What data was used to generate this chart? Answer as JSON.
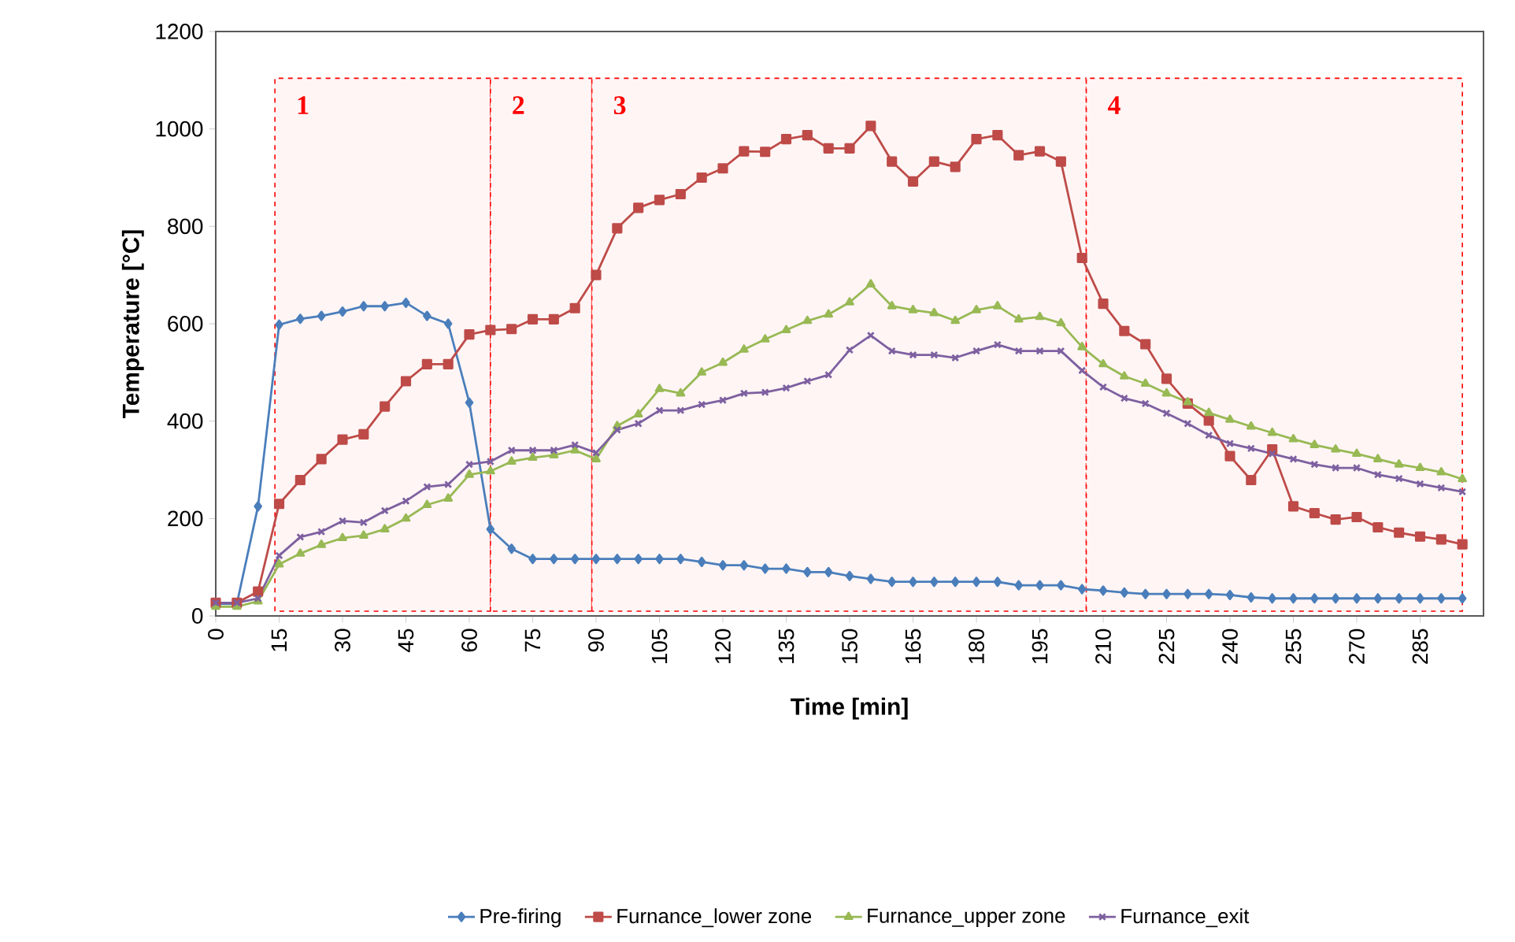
{
  "chart_data": {
    "type": "line",
    "xlabel": "Time [min]",
    "ylabel": "Temperature [°C]",
    "x": [
      0,
      5,
      10,
      15,
      20,
      25,
      30,
      35,
      40,
      45,
      50,
      55,
      60,
      65,
      70,
      75,
      80,
      85,
      90,
      95,
      100,
      105,
      110,
      115,
      120,
      125,
      130,
      135,
      140,
      145,
      150,
      155,
      160,
      165,
      170,
      175,
      180,
      185,
      190,
      195,
      200,
      205,
      210,
      215,
      220,
      225,
      230,
      235,
      240,
      245,
      250,
      255,
      260,
      265,
      270,
      275,
      280,
      285,
      290,
      295
    ],
    "xlim": [
      0,
      300
    ],
    "xticks": [
      0,
      15,
      30,
      45,
      60,
      75,
      90,
      105,
      120,
      135,
      150,
      165,
      180,
      195,
      210,
      225,
      240,
      255,
      270,
      285
    ],
    "ylim": [
      0,
      1200
    ],
    "yticks": [
      0,
      200,
      400,
      600,
      800,
      1000,
      1200
    ],
    "series": [
      {
        "name": "Pre-firing",
        "color": "#4a7ebb",
        "marker": "diamond",
        "values": [
          25,
          25,
          225,
          598,
          610,
          616,
          625,
          636,
          636,
          643,
          616,
          600,
          438,
          178,
          138,
          117,
          117,
          117,
          117,
          117,
          117,
          117,
          117,
          111,
          104,
          104,
          97,
          97,
          90,
          90,
          82,
          76,
          70,
          70,
          70,
          70,
          70,
          70,
          63,
          63,
          63,
          55,
          52,
          48,
          45,
          45,
          45,
          45,
          43,
          38,
          36,
          36,
          36,
          36,
          36,
          36,
          36,
          36,
          36,
          36
        ]
      },
      {
        "name": "Furnance_lower zone",
        "color": "#be4b48",
        "marker": "square",
        "values": [
          27,
          27,
          50,
          230,
          279,
          322,
          362,
          373,
          430,
          482,
          517,
          517,
          578,
          587,
          589,
          609,
          609,
          632,
          700,
          796,
          838,
          854,
          866,
          900,
          919,
          954,
          953,
          979,
          987,
          960,
          960,
          1006,
          933,
          892,
          933,
          922,
          979,
          987,
          946,
          954,
          933,
          735,
          641,
          585,
          558,
          487,
          436,
          401,
          328,
          279,
          342,
          225,
          211,
          198,
          203,
          182,
          171,
          163,
          157,
          147
        ]
      },
      {
        "name": "Furnance_upper zone",
        "color": "#98b954",
        "marker": "triangle",
        "values": [
          19,
          19,
          30,
          106,
          128,
          146,
          160,
          165,
          178,
          200,
          228,
          241,
          290,
          297,
          317,
          325,
          330,
          340,
          322,
          390,
          414,
          466,
          457,
          500,
          520,
          547,
          568,
          587,
          606,
          619,
          644,
          681,
          636,
          628,
          622,
          606,
          628,
          636,
          609,
          614,
          601,
          552,
          517,
          492,
          477,
          457,
          439,
          417,
          403,
          389,
          376,
          363,
          351,
          342,
          333,
          322,
          311,
          304,
          295,
          281
        ]
      },
      {
        "name": "Furnance_exit",
        "color": "#7d60a0",
        "marker": "cross",
        "values": [
          27,
          27,
          36,
          124,
          162,
          173,
          195,
          192,
          216,
          236,
          265,
          270,
          311,
          317,
          340,
          340,
          340,
          351,
          335,
          382,
          395,
          422,
          422,
          434,
          443,
          457,
          459,
          468,
          482,
          495,
          546,
          576,
          544,
          536,
          536,
          530,
          544,
          557,
          544,
          544,
          544,
          504,
          470,
          447,
          436,
          416,
          395,
          371,
          354,
          344,
          333,
          322,
          311,
          304,
          304,
          290,
          282,
          271,
          263,
          255
        ]
      }
    ],
    "bands": [
      {
        "axis": "x",
        "from": 14,
        "to": 65,
        "label": "1",
        "color": "#ff0000"
      },
      {
        "axis": "x",
        "from": 65,
        "to": 89,
        "label": "2",
        "color": "#ff0000"
      },
      {
        "axis": "x",
        "from": 89,
        "to": 206,
        "label": "3",
        "color": "#ff0000"
      },
      {
        "axis": "x",
        "from": 206,
        "to": 295,
        "label": "4",
        "color": "#ff0000"
      }
    ],
    "legend": "bottom",
    "line_style": "solid",
    "grid": false
  }
}
